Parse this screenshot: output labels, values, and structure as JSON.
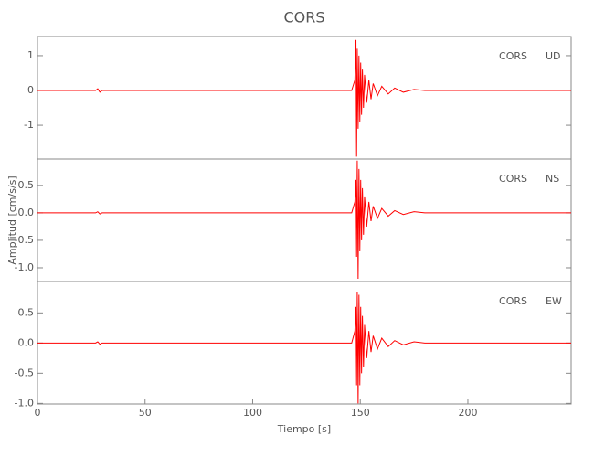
{
  "chart_data": [
    {
      "type": "line",
      "title": "CORS",
      "station": "CORS",
      "component": "UD",
      "xlim": [
        0,
        248
      ],
      "ylim": [
        -1.97,
        1.55
      ],
      "yticks": [
        1,
        0,
        -1
      ],
      "series": [
        {
          "color": "#ff0000",
          "x": [
            0,
            27,
            28,
            29,
            30,
            146,
            147.5,
            148,
            148.3,
            148.6,
            149,
            149.4,
            149.8,
            150.2,
            150.6,
            151,
            151.5,
            152,
            153,
            154,
            155,
            156,
            158,
            160,
            163,
            166,
            170,
            175,
            180,
            248
          ],
          "values": [
            0,
            0,
            0.05,
            -0.05,
            0,
            0,
            0.3,
            1.45,
            -1.9,
            1.2,
            -1.1,
            1.0,
            -0.9,
            0.8,
            -0.7,
            0.6,
            -0.5,
            0.45,
            -0.35,
            0.3,
            -0.25,
            0.2,
            -0.15,
            0.12,
            -0.1,
            0.07,
            -0.05,
            0.03,
            0,
            0
          ]
        }
      ]
    },
    {
      "type": "line",
      "y_label": "Amplitud [cm/s/s]",
      "station": "CORS",
      "component": "NS",
      "xlim": [
        0,
        248
      ],
      "ylim": [
        -1.25,
        0.98
      ],
      "yticks": [
        0.5,
        {
          "value": 0,
          "label": "0.0"
        },
        -0.5,
        {
          "value": -1,
          "label": "-1.0"
        }
      ],
      "series": [
        {
          "color": "#ff0000",
          "x": [
            0,
            27,
            28,
            29,
            30,
            146,
            147.5,
            148,
            148.3,
            148.6,
            149,
            149.4,
            149.8,
            150.2,
            150.6,
            151,
            151.5,
            152,
            153,
            154,
            155,
            156,
            158,
            160,
            163,
            166,
            170,
            175,
            180,
            248
          ],
          "values": [
            0,
            0,
            0.02,
            -0.02,
            0,
            0,
            0.2,
            0.6,
            -0.8,
            0.95,
            -1.2,
            0.8,
            -0.7,
            0.6,
            -0.5,
            0.45,
            -0.4,
            0.3,
            -0.25,
            0.2,
            -0.15,
            0.12,
            -0.1,
            0.08,
            -0.06,
            0.04,
            -0.03,
            0.02,
            0,
            0
          ]
        }
      ]
    },
    {
      "type": "line",
      "x_label": "Tiempo [s]",
      "station": "CORS",
      "component": "EW",
      "xlim": [
        0,
        248
      ],
      "xticks": [
        0,
        50,
        100,
        150,
        200
      ],
      "ylim": [
        -1.01,
        1.02
      ],
      "yticks": [
        0.5,
        {
          "value": 0,
          "label": "0.0"
        },
        -0.5,
        {
          "value": -1,
          "label": "-1.0"
        }
      ],
      "series": [
        {
          "color": "#ff0000",
          "x": [
            0,
            27,
            28,
            29,
            30,
            146,
            147.5,
            148,
            148.3,
            148.6,
            149,
            149.4,
            149.8,
            150.2,
            150.6,
            151,
            151.5,
            152,
            153,
            154,
            155,
            156,
            158,
            160,
            163,
            166,
            170,
            175,
            180,
            248
          ],
          "values": [
            0,
            0,
            0.02,
            -0.02,
            0,
            0,
            0.2,
            0.6,
            -0.7,
            0.85,
            -1.0,
            0.8,
            -0.7,
            0.6,
            -0.5,
            0.45,
            -0.4,
            0.3,
            -0.25,
            0.2,
            -0.15,
            0.12,
            -0.1,
            0.08,
            -0.06,
            0.04,
            -0.03,
            0.02,
            0,
            0
          ]
        }
      ]
    }
  ]
}
